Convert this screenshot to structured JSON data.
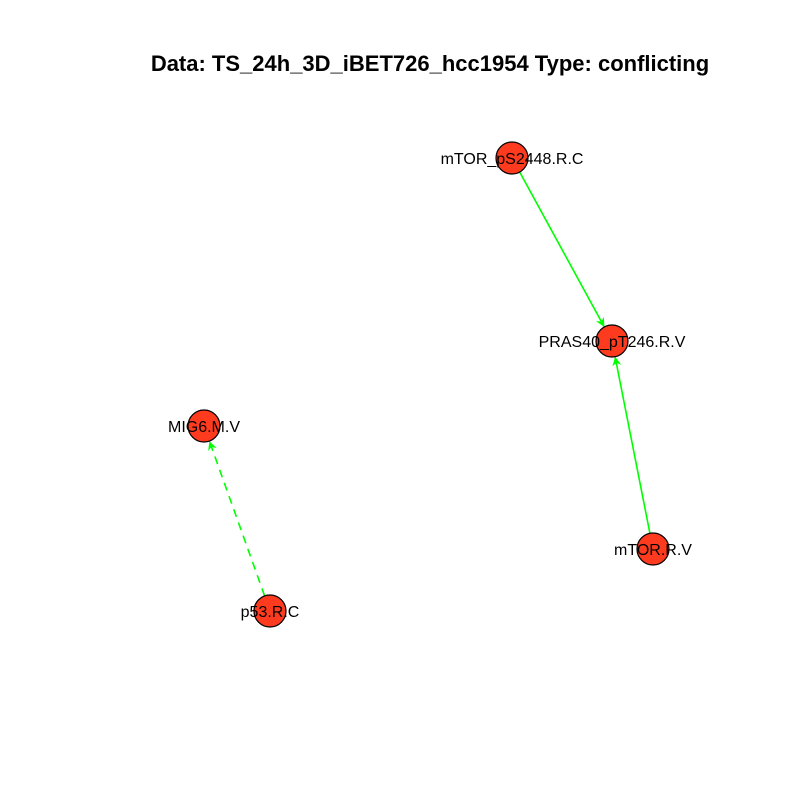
{
  "title": "Data: TS_24h_3D_iBET726_hcc1954 Type: conflicting",
  "colors": {
    "node_fill": "#FF3B1F",
    "edge": "#00FF00"
  },
  "nodes": [
    {
      "id": "mTOR_pS2448",
      "label": "mTOR_pS2448.R.C"
    },
    {
      "id": "PRAS40_pT246",
      "label": "PRAS40_pT246.R.V"
    },
    {
      "id": "mTOR",
      "label": "mTOR.R.V"
    },
    {
      "id": "MIG6",
      "label": "MIG6.M.V"
    },
    {
      "id": "p53",
      "label": "p53.R.C"
    }
  ],
  "edges": [
    {
      "from": "mTOR_pS2448",
      "to": "PRAS40_pT246",
      "style": "solid"
    },
    {
      "from": "mTOR",
      "to": "PRAS40_pT246",
      "style": "solid"
    },
    {
      "from": "p53",
      "to": "MIG6",
      "style": "dashed"
    }
  ]
}
